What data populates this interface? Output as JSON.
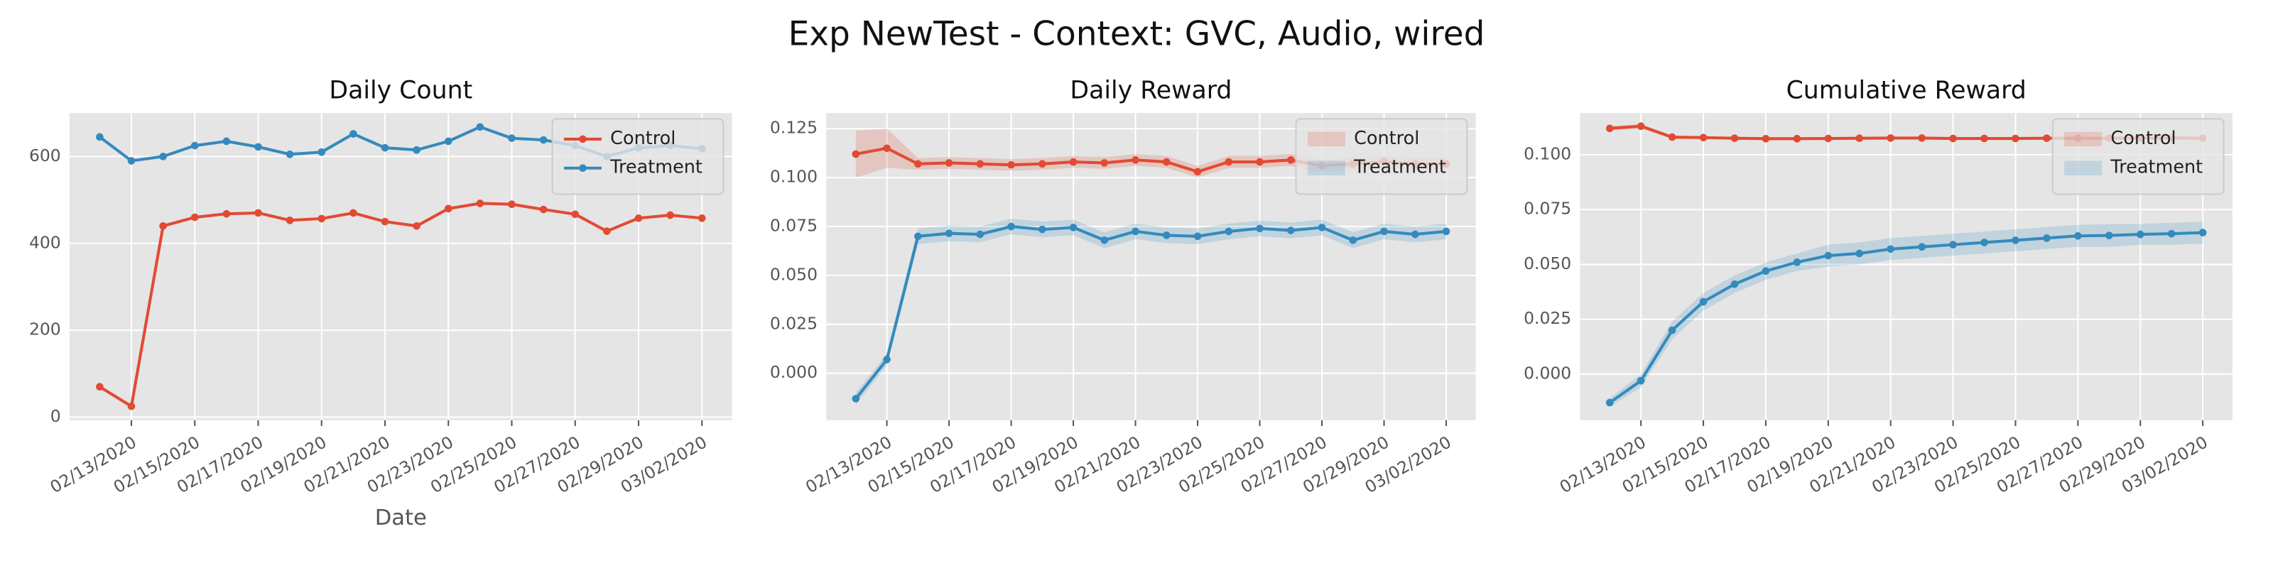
{
  "title": "Exp NewTest - Context: GVC, Audio, wired",
  "chart_data": [
    {
      "type": "line",
      "title": "Daily Count",
      "xlabel": "Date",
      "x": [
        "02/12/2020",
        "02/13/2020",
        "02/14/2020",
        "02/15/2020",
        "02/16/2020",
        "02/17/2020",
        "02/18/2020",
        "02/19/2020",
        "02/20/2020",
        "02/21/2020",
        "02/22/2020",
        "02/23/2020",
        "02/24/2020",
        "02/25/2020",
        "02/26/2020",
        "02/27/2020",
        "02/28/2020",
        "02/29/2020",
        "03/01/2020",
        "03/02/2020"
      ],
      "xticks": [
        "02/13/2020",
        "02/15/2020",
        "02/17/2020",
        "02/19/2020",
        "02/21/2020",
        "02/23/2020",
        "02/25/2020",
        "02/27/2020",
        "02/29/2020",
        "03/02/2020"
      ],
      "ylim": [
        -7,
        700
      ],
      "yticks": [
        0,
        200,
        400,
        600
      ],
      "grid": true,
      "legend": "upper right",
      "series": [
        {
          "name": "Control",
          "color": "#E24A33",
          "values": [
            70,
            25,
            440,
            460,
            468,
            470,
            453,
            457,
            470,
            450,
            440,
            480,
            492,
            490,
            478,
            467,
            428,
            458,
            465,
            458
          ]
        },
        {
          "name": "Treatment",
          "color": "#348ABD",
          "values": [
            645,
            590,
            600,
            625,
            635,
            622,
            605,
            610,
            652,
            620,
            615,
            635,
            668,
            642,
            638,
            625,
            600,
            620,
            625,
            618
          ]
        }
      ]
    },
    {
      "type": "line",
      "title": "Daily Reward",
      "x": [
        "02/12/2020",
        "02/13/2020",
        "02/14/2020",
        "02/15/2020",
        "02/16/2020",
        "02/17/2020",
        "02/18/2020",
        "02/19/2020",
        "02/20/2020",
        "02/21/2020",
        "02/22/2020",
        "02/23/2020",
        "02/24/2020",
        "02/25/2020",
        "02/26/2020",
        "02/27/2020",
        "02/28/2020",
        "02/29/2020",
        "03/01/2020",
        "03/02/2020"
      ],
      "xticks": [
        "02/13/2020",
        "02/15/2020",
        "02/17/2020",
        "02/19/2020",
        "02/21/2020",
        "02/23/2020",
        "02/25/2020",
        "02/27/2020",
        "02/29/2020",
        "03/02/2020"
      ],
      "ylim": [
        -0.024,
        0.133
      ],
      "yticks": [
        {
          "value": 0,
          "label": "0.000"
        },
        {
          "value": 0.025,
          "label": "0.025"
        },
        {
          "value": 0.05,
          "label": "0.050"
        },
        {
          "value": 0.075,
          "label": "0.075"
        },
        {
          "value": 0.1,
          "label": "0.100"
        },
        {
          "value": 0.125,
          "label": "0.125"
        }
      ],
      "grid": true,
      "legend": "upper right",
      "series": [
        {
          "name": "Control",
          "color": "#E24A33",
          "values": [
            0.112,
            0.115,
            0.107,
            0.1075,
            0.107,
            0.1065,
            0.107,
            0.108,
            0.1075,
            0.109,
            0.108,
            0.103,
            0.108,
            0.108,
            0.109,
            0.106,
            0.107,
            0.108,
            0.107,
            0.107
          ],
          "lower": [
            0.1,
            0.105,
            0.104,
            0.1045,
            0.104,
            0.1035,
            0.104,
            0.105,
            0.1045,
            0.106,
            0.105,
            0.1,
            0.105,
            0.105,
            0.106,
            0.103,
            0.104,
            0.105,
            0.104,
            0.104
          ],
          "upper": [
            0.124,
            0.125,
            0.11,
            0.1105,
            0.11,
            0.1095,
            0.11,
            0.111,
            0.1105,
            0.112,
            0.111,
            0.106,
            0.111,
            0.111,
            0.112,
            0.109,
            0.11,
            0.111,
            0.11,
            0.11
          ]
        },
        {
          "name": "Treatment",
          "color": "#348ABD",
          "values": [
            -0.013,
            0.007,
            0.07,
            0.0715,
            0.071,
            0.075,
            0.0735,
            0.0745,
            0.068,
            0.0725,
            0.0705,
            0.07,
            0.0725,
            0.074,
            0.073,
            0.0745,
            0.068,
            0.0725,
            0.071,
            0.0725
          ],
          "lower": [
            -0.016,
            0.004,
            0.066,
            0.0675,
            0.067,
            0.071,
            0.0695,
            0.0705,
            0.064,
            0.0685,
            0.0665,
            0.066,
            0.0685,
            0.07,
            0.069,
            0.0705,
            0.064,
            0.0685,
            0.067,
            0.0685
          ],
          "upper": [
            -0.01,
            0.01,
            0.074,
            0.0755,
            0.075,
            0.079,
            0.0775,
            0.0785,
            0.072,
            0.0765,
            0.0745,
            0.074,
            0.0765,
            0.078,
            0.077,
            0.0785,
            0.072,
            0.0765,
            0.075,
            0.0765
          ]
        }
      ]
    },
    {
      "type": "line",
      "title": "Cumulative Reward",
      "x": [
        "02/12/2020",
        "02/13/2020",
        "02/14/2020",
        "02/15/2020",
        "02/16/2020",
        "02/17/2020",
        "02/18/2020",
        "02/19/2020",
        "02/20/2020",
        "02/21/2020",
        "02/22/2020",
        "02/23/2020",
        "02/24/2020",
        "02/25/2020",
        "02/26/2020",
        "02/27/2020",
        "02/28/2020",
        "02/29/2020",
        "03/01/2020",
        "03/02/2020"
      ],
      "xticks": [
        "02/13/2020",
        "02/15/2020",
        "02/17/2020",
        "02/19/2020",
        "02/21/2020",
        "02/23/2020",
        "02/25/2020",
        "02/27/2020",
        "02/29/2020",
        "03/02/2020"
      ],
      "ylim": [
        -0.021,
        0.119
      ],
      "yticks": [
        {
          "value": 0,
          "label": "0.000"
        },
        {
          "value": 0.025,
          "label": "0.025"
        },
        {
          "value": 0.05,
          "label": "0.050"
        },
        {
          "value": 0.075,
          "label": "0.075"
        },
        {
          "value": 0.1,
          "label": "0.100"
        }
      ],
      "grid": true,
      "legend": "upper right",
      "series": [
        {
          "name": "Control",
          "color": "#E24A33",
          "values": [
            0.112,
            0.113,
            0.108,
            0.1078,
            0.1075,
            0.1073,
            0.1073,
            0.1074,
            0.1075,
            0.1076,
            0.1076,
            0.1074,
            0.1074,
            0.1074,
            0.1075,
            0.1075,
            0.1075,
            0.1076,
            0.1076,
            0.1075
          ],
          "lower": [
            0.111,
            0.112,
            0.1073,
            0.1073,
            0.1071,
            0.107,
            0.107,
            0.1071,
            0.1072,
            0.1073,
            0.1073,
            0.1071,
            0.1071,
            0.1071,
            0.1072,
            0.1072,
            0.1072,
            0.1073,
            0.1073,
            0.1072
          ],
          "upper": [
            0.113,
            0.114,
            0.1087,
            0.1083,
            0.1079,
            0.1076,
            0.1076,
            0.1077,
            0.1078,
            0.1079,
            0.1079,
            0.1077,
            0.1077,
            0.1077,
            0.1078,
            0.1078,
            0.1078,
            0.1079,
            0.1079,
            0.1078
          ]
        },
        {
          "name": "Treatment",
          "color": "#348ABD",
          "values": [
            -0.013,
            -0.003,
            0.02,
            0.033,
            0.041,
            0.047,
            0.051,
            0.054,
            0.055,
            0.057,
            0.058,
            0.059,
            0.06,
            0.061,
            0.062,
            0.063,
            0.0632,
            0.0637,
            0.064,
            0.0645
          ],
          "lower": [
            -0.015,
            -0.006,
            0.016,
            0.029,
            0.037,
            0.043,
            0.047,
            0.049,
            0.05,
            0.052,
            0.053,
            0.054,
            0.055,
            0.056,
            0.057,
            0.058,
            0.058,
            0.059,
            0.059,
            0.0595
          ],
          "upper": [
            -0.011,
            0.0,
            0.024,
            0.037,
            0.045,
            0.051,
            0.055,
            0.059,
            0.06,
            0.062,
            0.063,
            0.064,
            0.065,
            0.066,
            0.067,
            0.068,
            0.0684,
            0.0684,
            0.069,
            0.0695
          ]
        }
      ]
    }
  ]
}
